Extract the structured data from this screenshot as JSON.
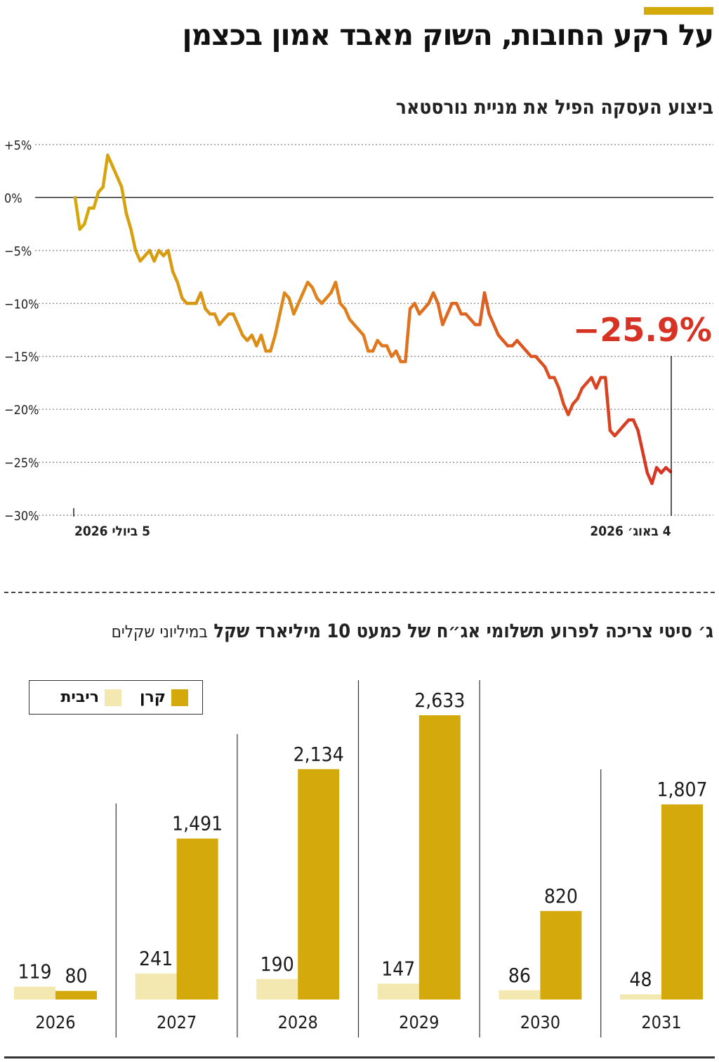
{
  "header": {
    "title": "על רקע החובות, השוק מאבד אמון בכצמן",
    "accent_color": "#d4a90c"
  },
  "line_section": {
    "title": "ביצוע העסקה הפיל את מניית נורסטאר"
  },
  "bar_section": {
    "title": "ג׳ סיטי צריכה לפרוע תשלומי אג״ח של כמעט 10 מיליארד שקל",
    "unit": "במיליוני שקלים"
  },
  "legend": {
    "principal": "קרן",
    "interest": "ריבית"
  },
  "chart_data": [
    {
      "type": "line",
      "title": "ביצוע העסקה הפיל את מניית נורסטאר",
      "y_ticks": [
        "+5%",
        "0%",
        "−5%",
        "−10%",
        "−15%",
        "−20%",
        "−25%",
        "−30%"
      ],
      "ylim": [
        -30,
        5
      ],
      "x_tick_labels": {
        "start": "5 ביולי 2026",
        "end": "4 באוג׳ 2026"
      },
      "annotation": "−25.9%",
      "grid": true,
      "colors": {
        "start": "#d4a90c",
        "mid": "#e07b20",
        "end": "#d63324"
      },
      "values": [
        0,
        -3,
        -2.5,
        -1,
        -1,
        0.5,
        1,
        4,
        3,
        2,
        1,
        -1.5,
        -3,
        -5,
        -6,
        -5.5,
        -5,
        -6,
        -5,
        -5.5,
        -5,
        -7,
        -8,
        -9.5,
        -10,
        -10,
        -10,
        -9,
        -10.5,
        -11,
        -11,
        -12,
        -11.5,
        -11,
        -11,
        -12,
        -13,
        -13.5,
        -13,
        -14,
        -13,
        -14.5,
        -14.5,
        -13,
        -11,
        -9,
        -9.5,
        -11,
        -10,
        -9,
        -8,
        -8.5,
        -9.5,
        -10,
        -9.5,
        -9,
        -8,
        -10,
        -10.5,
        -11.5,
        -12,
        -12.5,
        -13,
        -14.5,
        -14.5,
        -13.5,
        -14,
        -14,
        -15,
        -14.5,
        -15.5,
        -15.5,
        -10.5,
        -10,
        -11,
        -10.5,
        -10,
        -9,
        -10,
        -12,
        -11,
        -10,
        -10,
        -11,
        -11,
        -11.5,
        -12,
        -12,
        -9,
        -11,
        -12,
        -13,
        -13.5,
        -14,
        -14,
        -13.5,
        -14,
        -14.5,
        -15,
        -15,
        -15.5,
        -16,
        -17,
        -17,
        -18,
        -19.5,
        -20.5,
        -19.5,
        -19,
        -18,
        -17.5,
        -17,
        -18,
        -17,
        -17,
        -22,
        -22.5,
        -22,
        -21.5,
        -21,
        -21,
        -22,
        -24,
        -26,
        -27,
        -25.5,
        -26,
        -25.5,
        -25.9
      ]
    },
    {
      "type": "bar",
      "title": "ג׳ סיטי צריכה לפרוע תשלומי אג״ח של כמעט 10 מיליארד שקל",
      "unit": "במיליוני שקלים",
      "categories": [
        "2026",
        "2027",
        "2028",
        "2029",
        "2030",
        "2031"
      ],
      "series": [
        {
          "name": "ריבית",
          "values": [
            119,
            241,
            190,
            147,
            86,
            48
          ],
          "color": "#f2e8b0"
        },
        {
          "name": "קרן",
          "values": [
            80,
            1491,
            2134,
            2633,
            820,
            1807
          ],
          "color": "#d4a90c"
        }
      ],
      "value_labels": {
        "interest": [
          "119",
          "241",
          "190",
          "147",
          "86",
          "48"
        ],
        "principal": [
          "80",
          "1,491",
          "2,134",
          "2,633",
          "820",
          "1,807"
        ]
      },
      "ylim": [
        0,
        2633
      ],
      "legend_position": "top-left"
    }
  ]
}
